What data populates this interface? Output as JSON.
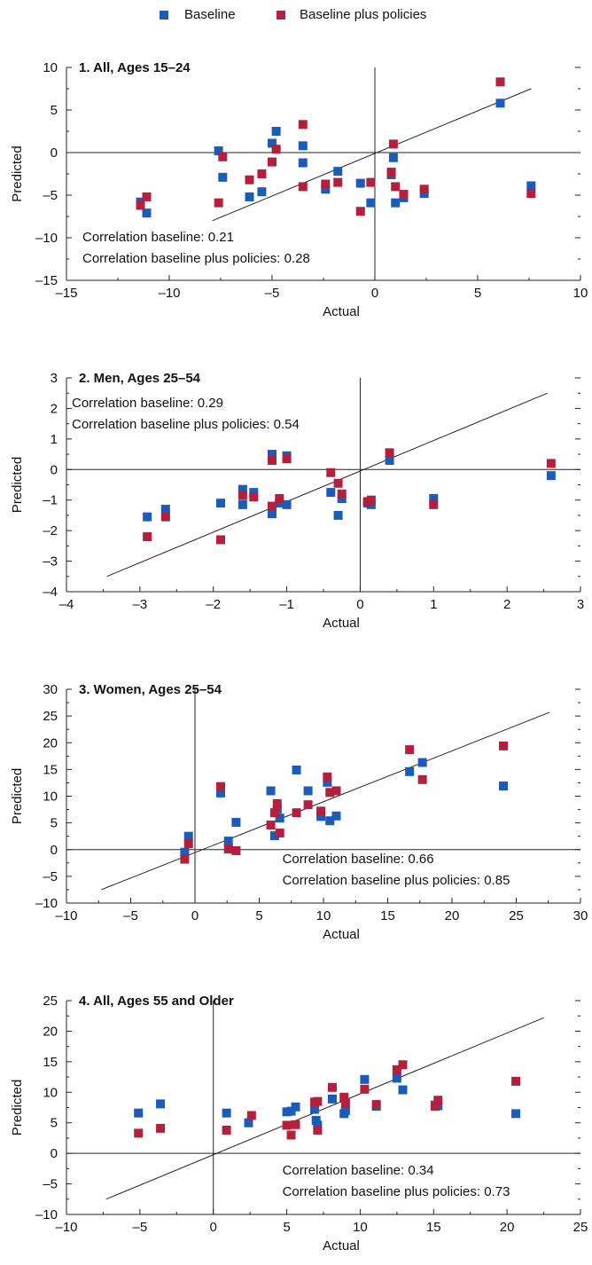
{
  "legend": {
    "baseline_label": "Baseline",
    "policies_label": "Baseline plus policies",
    "baseline_color": "#1a5cb8",
    "policies_color": "#b31f3c"
  },
  "chart_data": [
    {
      "type": "scatter",
      "title": "1. All, Ages 15–24",
      "xlabel": "Actual",
      "ylabel": "Predicted",
      "xlim": [
        -15,
        10
      ],
      "ylim": [
        -15,
        10
      ],
      "xticks": [
        -15,
        -10,
        -5,
        0,
        5,
        10
      ],
      "yticks": [
        -15,
        -10,
        -5,
        0,
        5,
        10
      ],
      "xtick_labels": [
        "–15",
        "–10",
        "–5",
        "0",
        "5",
        "10"
      ],
      "ytick_labels": [
        "–15",
        "–10",
        "–5",
        "0",
        "5",
        "10"
      ],
      "annotations": [
        "Correlation baseline: 0.21",
        "Correlation baseline plus policies: 0.28"
      ],
      "annotation_position": "bottom-left",
      "fit_line": [
        [
          -7.9,
          -8.0
        ],
        [
          7.6,
          7.5
        ]
      ],
      "series": [
        {
          "name": "Baseline",
          "points": [
            [
              -11.4,
              -5.8
            ],
            [
              -11.1,
              -7.1
            ],
            [
              -7.6,
              0.2
            ],
            [
              -7.4,
              -2.9
            ],
            [
              -6.1,
              -5.2
            ],
            [
              -5.5,
              -4.6
            ],
            [
              -5.0,
              1.1
            ],
            [
              -4.8,
              2.5
            ],
            [
              -3.5,
              0.8
            ],
            [
              -3.5,
              -1.2
            ],
            [
              -2.4,
              -4.3
            ],
            [
              -1.8,
              -2.2
            ],
            [
              -0.7,
              -3.6
            ],
            [
              -0.2,
              -5.9
            ],
            [
              0.8,
              -2.6
            ],
            [
              0.9,
              -0.6
            ],
            [
              1.0,
              -5.9
            ],
            [
              1.4,
              -5.3
            ],
            [
              2.4,
              -4.8
            ],
            [
              6.1,
              5.8
            ],
            [
              7.6,
              -3.9
            ]
          ]
        },
        {
          "name": "Baseline plus policies",
          "points": [
            [
              -11.4,
              -6.2
            ],
            [
              -11.1,
              -5.2
            ],
            [
              -7.6,
              -5.9
            ],
            [
              -7.4,
              -0.5
            ],
            [
              -6.1,
              -3.2
            ],
            [
              -5.5,
              -2.5
            ],
            [
              -5.0,
              -1.1
            ],
            [
              -4.8,
              0.4
            ],
            [
              -3.5,
              3.3
            ],
            [
              -3.5,
              -4.0
            ],
            [
              -2.4,
              -3.7
            ],
            [
              -1.8,
              -3.5
            ],
            [
              -0.7,
              -6.9
            ],
            [
              -0.2,
              -3.5
            ],
            [
              0.8,
              -2.3
            ],
            [
              0.9,
              1.0
            ],
            [
              1.0,
              -4.0
            ],
            [
              1.4,
              -4.9
            ],
            [
              2.4,
              -4.3
            ],
            [
              6.1,
              8.3
            ],
            [
              7.6,
              -4.8
            ]
          ]
        }
      ]
    },
    {
      "type": "scatter",
      "title": "2. Men, Ages 25–54",
      "xlabel": "Actual",
      "ylabel": "Predicted",
      "xlim": [
        -4,
        3
      ],
      "ylim": [
        -4,
        3
      ],
      "xticks": [
        -4,
        -3,
        -2,
        -1,
        0,
        1,
        2,
        3
      ],
      "yticks": [
        -4,
        -3,
        -2,
        -1,
        0,
        1,
        2,
        3
      ],
      "xtick_labels": [
        "–4",
        "–3",
        "–2",
        "–1",
        "0",
        "1",
        "2",
        "3"
      ],
      "ytick_labels": [
        "–4",
        "–3",
        "–2",
        "–1",
        "0",
        "1",
        "2",
        "3"
      ],
      "annotations": [
        "Correlation baseline: 0.29",
        "Correlation baseline plus policies: 0.54"
      ],
      "annotation_position": "top-left",
      "fit_line": [
        [
          -3.45,
          -3.5
        ],
        [
          2.55,
          2.5
        ]
      ],
      "series": [
        {
          "name": "Baseline",
          "points": [
            [
              -2.9,
              -1.55
            ],
            [
              -2.65,
              -1.3
            ],
            [
              -1.9,
              -1.1
            ],
            [
              -1.6,
              -0.65
            ],
            [
              -1.6,
              -1.15
            ],
            [
              -1.45,
              -0.75
            ],
            [
              -1.2,
              0.5
            ],
            [
              -1.2,
              -1.45
            ],
            [
              -1.1,
              -1.1
            ],
            [
              -1.0,
              0.45
            ],
            [
              -1.0,
              -1.15
            ],
            [
              -0.4,
              -0.75
            ],
            [
              -0.3,
              -1.5
            ],
            [
              -0.25,
              -0.95
            ],
            [
              0.1,
              -1.1
            ],
            [
              0.15,
              -1.15
            ],
            [
              0.4,
              0.3
            ],
            [
              1.0,
              -0.95
            ],
            [
              2.6,
              -0.2
            ]
          ]
        },
        {
          "name": "Baseline plus policies",
          "points": [
            [
              -2.9,
              -2.2
            ],
            [
              -2.65,
              -1.55
            ],
            [
              -1.9,
              -2.3
            ],
            [
              -1.6,
              -0.85
            ],
            [
              -1.45,
              -0.9
            ],
            [
              -1.2,
              0.3
            ],
            [
              -1.2,
              -1.2
            ],
            [
              -1.1,
              -0.95
            ],
            [
              -1.0,
              0.35
            ],
            [
              -0.4,
              -0.1
            ],
            [
              -0.3,
              -0.45
            ],
            [
              -0.25,
              -0.8
            ],
            [
              0.1,
              -1.05
            ],
            [
              0.15,
              -1.0
            ],
            [
              0.4,
              0.55
            ],
            [
              1.0,
              -1.15
            ],
            [
              2.6,
              0.2
            ]
          ]
        }
      ]
    },
    {
      "type": "scatter",
      "title": "3. Women, Ages 25–54",
      "xlabel": "Actual",
      "ylabel": "Predicted",
      "xlim": [
        -10,
        30
      ],
      "ylim": [
        -10,
        30
      ],
      "xticks": [
        -10,
        -5,
        0,
        5,
        10,
        15,
        20,
        25,
        30
      ],
      "yticks": [
        -10,
        -5,
        0,
        5,
        10,
        15,
        20,
        25,
        30
      ],
      "xtick_labels": [
        "–10",
        "–5",
        "0",
        "5",
        "10",
        "15",
        "20",
        "25",
        "30"
      ],
      "ytick_labels": [
        "–10",
        "–5",
        "0",
        "5",
        "10",
        "15",
        "20",
        "25",
        "30"
      ],
      "annotations": [
        "Correlation baseline: 0.66",
        "Correlation baseline plus policies: 0.85"
      ],
      "annotation_position": "bottom-right",
      "fit_line": [
        [
          -7.3,
          -7.5
        ],
        [
          27.6,
          25.7
        ]
      ],
      "series": [
        {
          "name": "Baseline",
          "points": [
            [
              -0.8,
              -0.5
            ],
            [
              -0.5,
              2.5
            ],
            [
              2.0,
              10.6
            ],
            [
              2.6,
              1.6
            ],
            [
              3.2,
              5.1
            ],
            [
              5.9,
              11.0
            ],
            [
              6.2,
              2.6
            ],
            [
              6.4,
              7.6
            ],
            [
              6.6,
              5.9
            ],
            [
              7.9,
              14.9
            ],
            [
              8.8,
              11.0
            ],
            [
              9.8,
              6.2
            ],
            [
              10.3,
              12.6
            ],
            [
              10.5,
              5.4
            ],
            [
              11.0,
              6.3
            ],
            [
              16.7,
              14.6
            ],
            [
              17.7,
              16.3
            ],
            [
              24.0,
              11.9
            ]
          ]
        },
        {
          "name": "Baseline plus policies",
          "points": [
            [
              -0.8,
              -1.8
            ],
            [
              -0.5,
              1.1
            ],
            [
              2.0,
              11.8
            ],
            [
              2.6,
              0.1
            ],
            [
              3.2,
              -0.2
            ],
            [
              5.9,
              4.6
            ],
            [
              6.2,
              6.9
            ],
            [
              6.4,
              8.6
            ],
            [
              6.6,
              3.1
            ],
            [
              7.9,
              6.9
            ],
            [
              8.8,
              8.4
            ],
            [
              9.8,
              7.2
            ],
            [
              10.3,
              13.6
            ],
            [
              10.5,
              10.7
            ],
            [
              11.0,
              11.0
            ],
            [
              16.7,
              18.7
            ],
            [
              17.7,
              13.1
            ],
            [
              24.0,
              19.4
            ]
          ]
        }
      ]
    },
    {
      "type": "scatter",
      "title": "4. All, Ages 55 and Older",
      "xlabel": "Actual",
      "ylabel": "Predicted",
      "xlim": [
        -10,
        25
      ],
      "ylim": [
        -10,
        25
      ],
      "xticks": [
        -10,
        -5,
        0,
        5,
        10,
        15,
        20,
        25
      ],
      "yticks": [
        -10,
        -5,
        0,
        5,
        10,
        15,
        20,
        25
      ],
      "xtick_labels": [
        "–10",
        "–5",
        "0",
        "5",
        "10",
        "15",
        "20",
        "25"
      ],
      "ytick_labels": [
        "–10",
        "–5",
        "0",
        "5",
        "10",
        "15",
        "20",
        "25"
      ],
      "annotations": [
        "Correlation baseline: 0.34",
        "Correlation baseline plus policies: 0.73"
      ],
      "annotation_position": "bottom-right",
      "fit_line": [
        [
          -7.3,
          -7.5
        ],
        [
          22.5,
          22.2
        ]
      ],
      "series": [
        {
          "name": "Baseline",
          "points": [
            [
              -5.1,
              6.6
            ],
            [
              -3.6,
              8.1
            ],
            [
              0.9,
              6.6
            ],
            [
              2.4,
              5.0
            ],
            [
              5.0,
              6.8
            ],
            [
              5.3,
              6.9
            ],
            [
              5.6,
              7.6
            ],
            [
              6.9,
              7.2
            ],
            [
              7.0,
              5.4
            ],
            [
              7.1,
              4.6
            ],
            [
              8.1,
              8.9
            ],
            [
              8.9,
              6.5
            ],
            [
              9.0,
              7.0
            ],
            [
              10.3,
              12.1
            ],
            [
              11.1,
              7.7
            ],
            [
              12.5,
              12.3
            ],
            [
              12.9,
              10.4
            ],
            [
              15.1,
              7.9
            ],
            [
              15.3,
              7.8
            ],
            [
              20.6,
              6.5
            ]
          ]
        },
        {
          "name": "Baseline plus policies",
          "points": [
            [
              -5.1,
              3.3
            ],
            [
              -3.6,
              4.1
            ],
            [
              0.9,
              3.8
            ],
            [
              2.6,
              6.2
            ],
            [
              5.0,
              4.6
            ],
            [
              5.3,
              3.0
            ],
            [
              5.6,
              4.7
            ],
            [
              6.9,
              8.4
            ],
            [
              7.1,
              8.5
            ],
            [
              7.1,
              3.8
            ],
            [
              8.1,
              10.8
            ],
            [
              8.9,
              9.2
            ],
            [
              9.0,
              8.2
            ],
            [
              10.3,
              10.5
            ],
            [
              11.1,
              8.0
            ],
            [
              12.5,
              13.7
            ],
            [
              12.9,
              14.5
            ],
            [
              15.1,
              7.7
            ],
            [
              15.3,
              8.7
            ],
            [
              20.6,
              11.8
            ]
          ]
        }
      ]
    }
  ]
}
